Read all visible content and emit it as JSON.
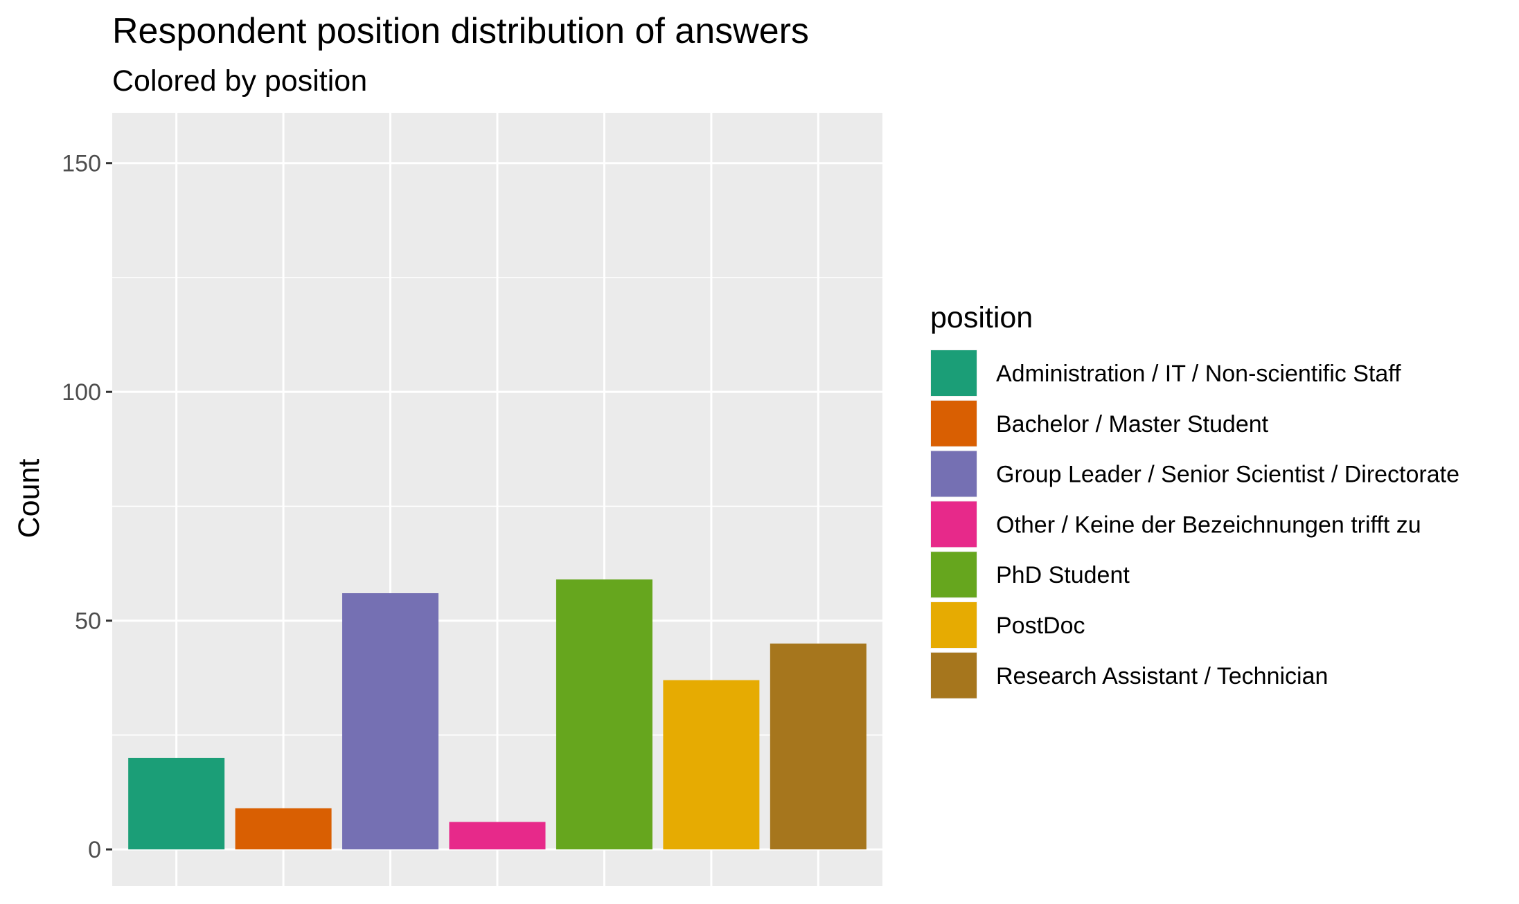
{
  "chart_data": {
    "type": "bar",
    "title": "Respondent position distribution of answers",
    "subtitle": "Colored by  position",
    "xlabel": "",
    "ylabel": "Count",
    "ylim": [
      -8,
      161
    ],
    "yticks": [
      0,
      50,
      100,
      150
    ],
    "grid": true,
    "legend_position": "right",
    "legend_title": "position",
    "categories": [
      "Administration / IT / Non-scientific Staff",
      "Bachelor / Master Student",
      "Group Leader / Senior Scientist / Directorate",
      "Other / Keine der Bezeichnungen trifft zu",
      "PhD Student",
      "PostDoc",
      "Research Assistant / Technician"
    ],
    "values": [
      20,
      9,
      56,
      6,
      59,
      37,
      45
    ],
    "colors": [
      "#1b9e77",
      "#d95f02",
      "#7570b3",
      "#e7298a",
      "#66a61e",
      "#e6ab02",
      "#a6761d"
    ]
  }
}
